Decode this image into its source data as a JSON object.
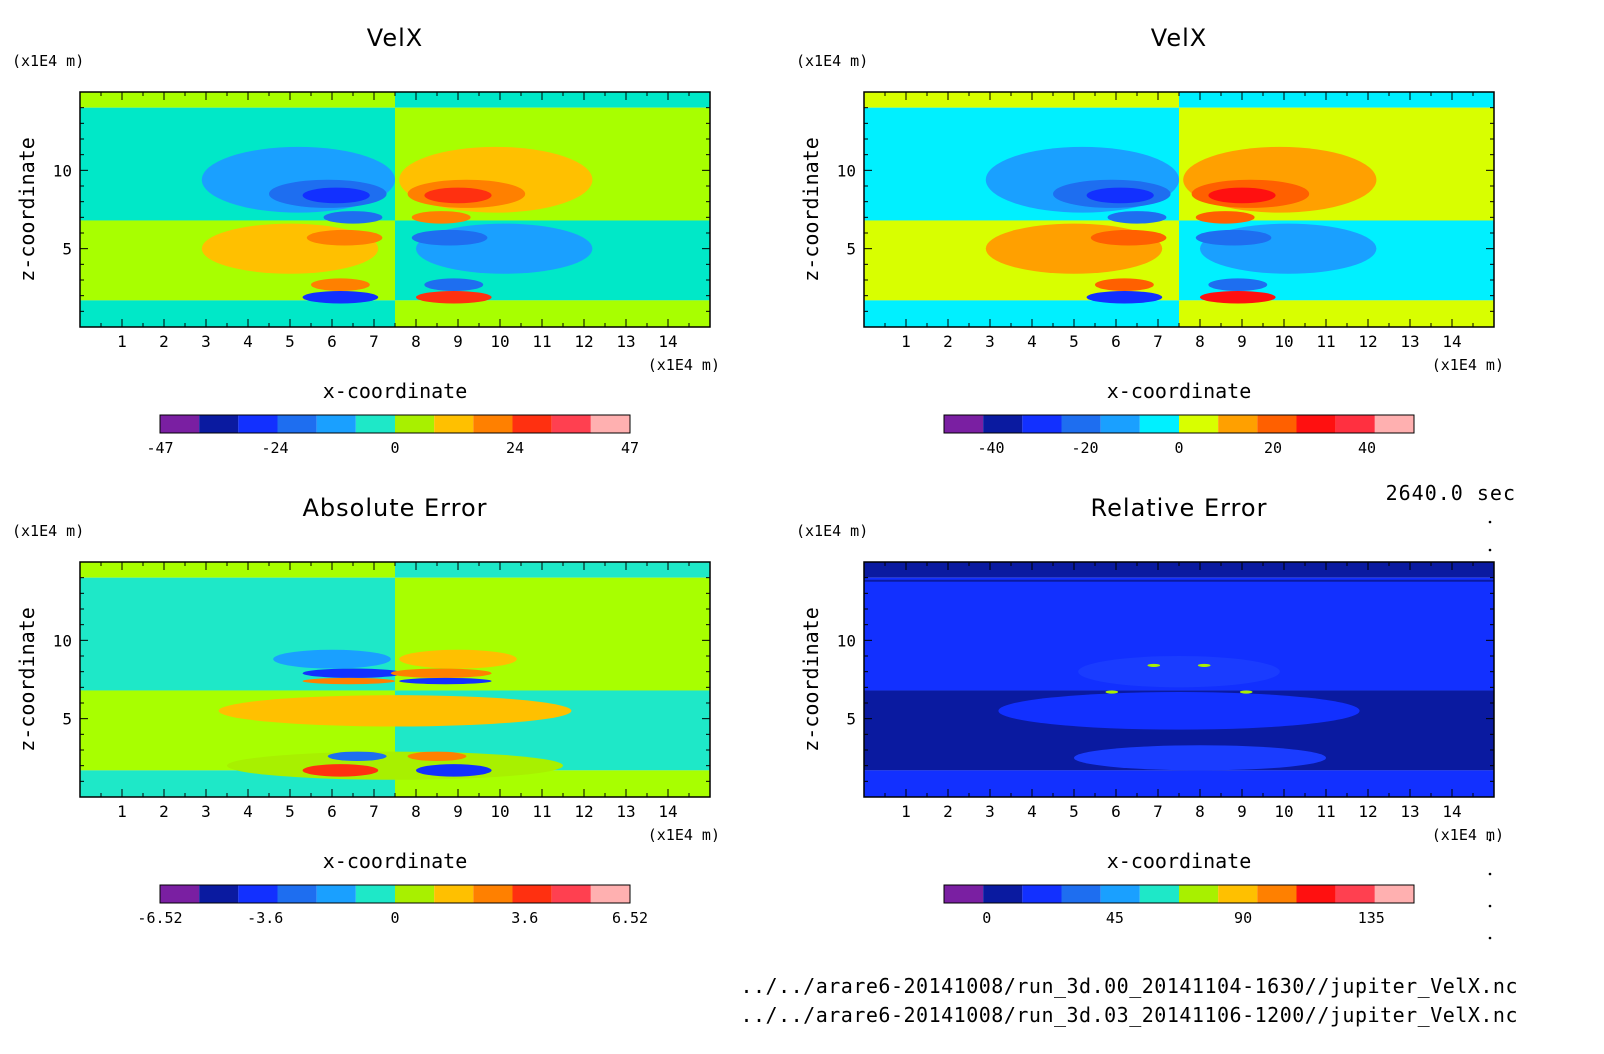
{
  "chart_data": [
    {
      "type": "heatmap",
      "title": "VelX",
      "xlabel": "x-coordinate",
      "ylabel": "z-coordinate",
      "x_unit": "(x1E4 m)",
      "y_unit": "(x1E4 m)",
      "xlim": [
        0,
        15
      ],
      "ylim": [
        0,
        15
      ],
      "x_ticks": [
        "1",
        "2",
        "3",
        "4",
        "5",
        "6",
        "7",
        "8",
        "9",
        "10",
        "11",
        "12",
        "13",
        "14"
      ],
      "y_ticks": [
        "5",
        "10"
      ],
      "colorbar": {
        "labels": [
          "-47",
          "-24",
          "0",
          "24",
          "47"
        ],
        "range": [
          -47,
          47
        ],
        "colors": [
          "#7a1fa2",
          "#0a1aa0",
          "#1230ff",
          "#1e6ef0",
          "#1aa0ff",
          "#1ee8c8",
          "#a8f000",
          "#ffc000",
          "#ff8000",
          "#ff3010",
          "#ff4050",
          "#ffb0b0"
        ]
      },
      "field": {
        "background": [
          "#a8ff00",
          "#00e8c8"
        ],
        "features": [
          {
            "x": 5.2,
            "z": 9.4,
            "rx": 2.3,
            "rz": 2.1,
            "level": -1
          },
          {
            "x": 5.9,
            "z": 8.5,
            "rx": 1.4,
            "rz": 0.9,
            "level": -2
          },
          {
            "x": 6.1,
            "z": 8.4,
            "rx": 0.8,
            "rz": 0.5,
            "level": -3
          },
          {
            "x": 6.5,
            "z": 7.0,
            "rx": 0.7,
            "rz": 0.4,
            "level": -2
          },
          {
            "x": 9.9,
            "z": 9.4,
            "rx": 2.3,
            "rz": 2.1,
            "level": 1
          },
          {
            "x": 9.2,
            "z": 8.5,
            "rx": 1.4,
            "rz": 0.9,
            "level": 2
          },
          {
            "x": 9.0,
            "z": 8.4,
            "rx": 0.8,
            "rz": 0.5,
            "level": 3
          },
          {
            "x": 8.6,
            "z": 7.0,
            "rx": 0.7,
            "rz": 0.4,
            "level": 2
          },
          {
            "x": 5.0,
            "z": 5.0,
            "rx": 2.1,
            "rz": 1.6,
            "level": 1
          },
          {
            "x": 6.3,
            "z": 5.7,
            "rx": 0.9,
            "rz": 0.5,
            "level": 2
          },
          {
            "x": 10.1,
            "z": 5.0,
            "rx": 2.1,
            "rz": 1.6,
            "level": -1
          },
          {
            "x": 8.8,
            "z": 5.7,
            "rx": 0.9,
            "rz": 0.5,
            "level": -2
          },
          {
            "x": 6.2,
            "z": 2.7,
            "rx": 0.7,
            "rz": 0.4,
            "level": 2
          },
          {
            "x": 6.2,
            "z": 1.9,
            "rx": 0.9,
            "rz": 0.4,
            "level": -3
          },
          {
            "x": 8.9,
            "z": 2.7,
            "rx": 0.7,
            "rz": 0.4,
            "level": -2
          },
          {
            "x": 8.9,
            "z": 1.9,
            "rx": 0.9,
            "rz": 0.4,
            "level": 3
          }
        ]
      }
    },
    {
      "type": "heatmap",
      "title": "VelX",
      "xlabel": "x-coordinate",
      "ylabel": "z-coordinate",
      "x_unit": "(x1E4 m)",
      "y_unit": "(x1E4 m)",
      "xlim": [
        0,
        15
      ],
      "ylim": [
        0,
        15
      ],
      "x_ticks": [
        "1",
        "2",
        "3",
        "4",
        "5",
        "6",
        "7",
        "8",
        "9",
        "10",
        "11",
        "12",
        "13",
        "14"
      ],
      "y_ticks": [
        "5",
        "10"
      ],
      "colorbar": {
        "labels": [
          "-40",
          "-20",
          "0",
          "20",
          "40"
        ],
        "range": [
          -50,
          50
        ],
        "colors": [
          "#7a1fa2",
          "#0a1aa0",
          "#1230ff",
          "#1e6ef0",
          "#1aa0ff",
          "#00f0ff",
          "#d8ff00",
          "#ffa000",
          "#ff6000",
          "#ff1010",
          "#ff3040",
          "#ffb0b0"
        ]
      },
      "field": {
        "background": [
          "#d8ff00",
          "#00f0ff"
        ],
        "features": [
          {
            "x": 5.2,
            "z": 9.4,
            "rx": 2.3,
            "rz": 2.1,
            "level": -1
          },
          {
            "x": 5.9,
            "z": 8.5,
            "rx": 1.4,
            "rz": 0.9,
            "level": -2
          },
          {
            "x": 6.1,
            "z": 8.4,
            "rx": 0.8,
            "rz": 0.5,
            "level": -3
          },
          {
            "x": 6.5,
            "z": 7.0,
            "rx": 0.7,
            "rz": 0.4,
            "level": -2
          },
          {
            "x": 9.9,
            "z": 9.4,
            "rx": 2.3,
            "rz": 2.1,
            "level": 1
          },
          {
            "x": 9.2,
            "z": 8.5,
            "rx": 1.4,
            "rz": 0.9,
            "level": 2
          },
          {
            "x": 9.0,
            "z": 8.4,
            "rx": 0.8,
            "rz": 0.5,
            "level": 3
          },
          {
            "x": 8.6,
            "z": 7.0,
            "rx": 0.7,
            "rz": 0.4,
            "level": 2
          },
          {
            "x": 5.0,
            "z": 5.0,
            "rx": 2.1,
            "rz": 1.6,
            "level": 1
          },
          {
            "x": 6.3,
            "z": 5.7,
            "rx": 0.9,
            "rz": 0.5,
            "level": 2
          },
          {
            "x": 10.1,
            "z": 5.0,
            "rx": 2.1,
            "rz": 1.6,
            "level": -1
          },
          {
            "x": 8.8,
            "z": 5.7,
            "rx": 0.9,
            "rz": 0.5,
            "level": -2
          },
          {
            "x": 6.2,
            "z": 2.7,
            "rx": 0.7,
            "rz": 0.4,
            "level": 2
          },
          {
            "x": 6.2,
            "z": 1.9,
            "rx": 0.9,
            "rz": 0.4,
            "level": -3
          },
          {
            "x": 8.9,
            "z": 2.7,
            "rx": 0.7,
            "rz": 0.4,
            "level": -2
          },
          {
            "x": 8.9,
            "z": 1.9,
            "rx": 0.9,
            "rz": 0.4,
            "level": 3
          }
        ]
      }
    },
    {
      "type": "heatmap",
      "title": "Absolute Error",
      "xlabel": "x-coordinate",
      "ylabel": "z-coordinate",
      "x_unit": "(x1E4 m)",
      "y_unit": "(x1E4 m)",
      "xlim": [
        0,
        15
      ],
      "ylim": [
        0,
        15
      ],
      "x_ticks": [
        "1",
        "2",
        "3",
        "4",
        "5",
        "6",
        "7",
        "8",
        "9",
        "10",
        "11",
        "12",
        "13",
        "14"
      ],
      "y_ticks": [
        "5",
        "10"
      ],
      "colorbar": {
        "labels": [
          "-6.52",
          "-3.6",
          "0",
          "3.6",
          "6.52"
        ],
        "range": [
          -6.52,
          6.52
        ],
        "colors": [
          "#7a1fa2",
          "#0a1aa0",
          "#1230ff",
          "#1e6ef0",
          "#1aa0ff",
          "#1ee8c8",
          "#a8f000",
          "#ffc000",
          "#ff8000",
          "#ff3010",
          "#ff4050",
          "#ffb0b0"
        ]
      },
      "field": {
        "background": [
          "#a8ff00",
          "#1ee8c8"
        ],
        "features": [
          {
            "x": 7.5,
            "z": 5.5,
            "rx": 4.2,
            "rz": 1.0,
            "level": 1
          },
          {
            "x": 7.5,
            "z": 2.0,
            "rx": 4.0,
            "rz": 0.9,
            "level": 0
          },
          {
            "x": 6.0,
            "z": 8.8,
            "rx": 1.4,
            "rz": 0.6,
            "level": -1
          },
          {
            "x": 6.5,
            "z": 7.9,
            "rx": 1.2,
            "rz": 0.3,
            "level": -3
          },
          {
            "x": 6.4,
            "z": 7.4,
            "rx": 1.1,
            "rz": 0.2,
            "level": 2
          },
          {
            "x": 9.0,
            "z": 8.8,
            "rx": 1.4,
            "rz": 0.6,
            "level": 1
          },
          {
            "x": 8.6,
            "z": 7.9,
            "rx": 1.2,
            "rz": 0.3,
            "level": 2
          },
          {
            "x": 8.7,
            "z": 7.4,
            "rx": 1.1,
            "rz": 0.2,
            "level": -3
          },
          {
            "x": 6.2,
            "z": 1.7,
            "rx": 0.9,
            "rz": 0.4,
            "level": 3
          },
          {
            "x": 6.6,
            "z": 2.6,
            "rx": 0.7,
            "rz": 0.3,
            "level": -2
          },
          {
            "x": 8.9,
            "z": 1.7,
            "rx": 0.9,
            "rz": 0.4,
            "level": -3
          },
          {
            "x": 8.5,
            "z": 2.6,
            "rx": 0.7,
            "rz": 0.3,
            "level": 2
          }
        ]
      }
    },
    {
      "type": "heatmap",
      "title": "Relative Error",
      "xlabel": "x-coordinate",
      "ylabel": "z-coordinate",
      "x_unit": "(x1E4 m)",
      "y_unit": "(x1E4 m)",
      "xlim": [
        0,
        15
      ],
      "ylim": [
        0,
        15
      ],
      "x_ticks": [
        "1",
        "2",
        "3",
        "4",
        "5",
        "6",
        "7",
        "8",
        "9",
        "10",
        "11",
        "12",
        "13",
        "14"
      ],
      "y_ticks": [
        "5",
        "10"
      ],
      "colorbar": {
        "labels": [
          "0",
          "45",
          "90",
          "135"
        ],
        "range": [
          -15,
          150
        ],
        "colors": [
          "#7a1fa2",
          "#0a1aa0",
          "#1230ff",
          "#1e6ef0",
          "#1aa0ff",
          "#1ee8c8",
          "#a8f000",
          "#ffc000",
          "#ff8000",
          "#ff1010",
          "#ff4050",
          "#ffb0b0"
        ]
      },
      "field": {
        "background": [
          "#0a1aa0",
          "#1230ff"
        ],
        "features": [
          {
            "x": 7.5,
            "z": 5.5,
            "rx": 4.3,
            "rz": 1.2,
            "level": -2
          },
          {
            "x": 7.5,
            "z": 8.0,
            "rx": 2.4,
            "rz": 1.0,
            "level": -3
          },
          {
            "x": 8.0,
            "z": 2.5,
            "rx": 3.0,
            "rz": 0.8,
            "level": -3
          },
          {
            "x": 6.9,
            "z": 8.4,
            "rx": 0.15,
            "rz": 0.1,
            "level": 1
          },
          {
            "x": 8.1,
            "z": 8.4,
            "rx": 0.15,
            "rz": 0.1,
            "level": 1
          },
          {
            "x": 5.9,
            "z": 6.7,
            "rx": 0.15,
            "rz": 0.1,
            "level": 1
          },
          {
            "x": 9.1,
            "z": 6.7,
            "rx": 0.15,
            "rz": 0.1,
            "level": 1
          }
        ]
      }
    }
  ],
  "time_label": "2640.0 sec",
  "file_paths": [
    "../../arare6-20141008/run_3d.00_20141104-1630//jupiter_VelX.nc",
    "../../arare6-20141008/run_3d.03_20141106-1200//jupiter_VelX.nc"
  ]
}
